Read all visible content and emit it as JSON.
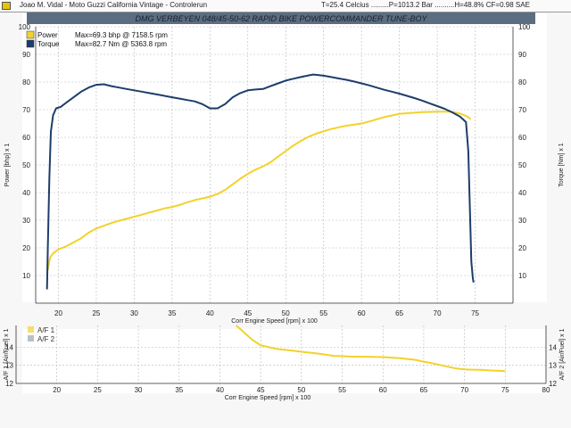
{
  "window": {
    "title": "Joao M. Vidal - Moto Guzzi California Vintage - Controlerun",
    "conditions": "T=25.4 Celcius .........P=1013.2 Bar ..........H=48.8% CF=0.98 SAE"
  },
  "banner": "DMG VERBEYEN     048/45-50-62   RAPID BIKE   POWERCOMMANDER   TUNE-BOY",
  "colors": {
    "power": "#f2d22c",
    "torque": "#1e3d6b",
    "af2": "#9aa7b3",
    "grid": "#b8b8b8",
    "banner_bg": "#5b6d80"
  },
  "chart_data": [
    {
      "type": "line",
      "title": "",
      "xlabel": "Corr Engine Speed [rpm] x 100",
      "ylabel": "Power [bhp] x 1",
      "y2label": "Torque [Nm] x 1",
      "xlim": [
        17,
        80
      ],
      "ylim": [
        0,
        100
      ],
      "y2lim": [
        0,
        100
      ],
      "xticks": [
        20,
        25,
        30,
        35,
        40,
        45,
        50,
        55,
        60,
        65,
        70,
        75
      ],
      "yticks": [
        10,
        20,
        30,
        40,
        50,
        60,
        70,
        80,
        90,
        100
      ],
      "grid": true,
      "legend_position": "top-left",
      "series": [
        {
          "name": "Power Max=69.3 bhp @ 7158.5 rpm",
          "legend_label": "Power",
          "legend_value": "Max=69.3 bhp @ 7158.5 rpm",
          "color_key": "power",
          "x": [
            18.6,
            18.9,
            19.3,
            20.0,
            21.0,
            22.0,
            23.0,
            24.0,
            25.0,
            26.0,
            27.0,
            28.0,
            29.0,
            30.0,
            31.0,
            32.0,
            33.0,
            34.0,
            35.0,
            36.0,
            37.0,
            38.0,
            39.0,
            40.0,
            41.0,
            42.0,
            43.0,
            44.0,
            45.0,
            46.0,
            47.0,
            48.0,
            49.0,
            50.0,
            51.0,
            52.0,
            53.0,
            54.0,
            55.0,
            56.0,
            57.0,
            58.0,
            59.0,
            60.0,
            61.0,
            62.0,
            63.0,
            64.0,
            65.0,
            66.0,
            67.0,
            68.0,
            69.0,
            70.0,
            71.0,
            71.6,
            72.0,
            73.0,
            74.0,
            74.4
          ],
          "y": [
            12.0,
            16.5,
            18.0,
            19.5,
            20.5,
            22.0,
            23.5,
            25.5,
            27.0,
            28.0,
            29.0,
            29.8,
            30.5,
            31.3,
            32.0,
            32.8,
            33.5,
            34.3,
            34.8,
            35.5,
            36.5,
            37.3,
            37.9,
            38.5,
            39.5,
            41.0,
            43.0,
            45.0,
            46.8,
            48.3,
            49.5,
            51.0,
            53.0,
            55.0,
            57.0,
            58.7,
            60.2,
            61.3,
            62.2,
            63.0,
            63.6,
            64.2,
            64.6,
            65.0,
            65.7,
            66.5,
            67.3,
            67.9,
            68.5,
            68.7,
            68.9,
            69.1,
            69.2,
            69.3,
            69.3,
            69.3,
            69.2,
            68.6,
            67.5,
            66.5
          ]
        },
        {
          "name": "Torque Max=82.7 Nm @ 5363.8 rpm",
          "legend_label": "Torque",
          "legend_value": "Max=82.7 Nm @ 5363.8 rpm",
          "color_key": "torque",
          "x": [
            18.5,
            18.6,
            18.8,
            19.0,
            19.3,
            19.7,
            20.3,
            21.0,
            22.0,
            23.0,
            24.0,
            25.0,
            26.0,
            27.0,
            28.0,
            29.0,
            30.0,
            31.0,
            32.0,
            33.0,
            34.0,
            35.0,
            36.0,
            37.0,
            38.0,
            39.0,
            40.0,
            41.0,
            42.0,
            43.0,
            44.0,
            45.0,
            46.0,
            47.0,
            48.0,
            49.0,
            50.0,
            51.0,
            52.0,
            53.0,
            53.6,
            54.0,
            55.0,
            56.0,
            57.0,
            58.0,
            59.0,
            60.0,
            61.0,
            62.0,
            63.0,
            64.0,
            65.0,
            66.0,
            67.0,
            68.0,
            69.0,
            70.0,
            71.0,
            72.0,
            73.0,
            73.8,
            74.1,
            74.3,
            74.5,
            74.7,
            74.8
          ],
          "y": [
            5.0,
            20.0,
            45.0,
            62.0,
            68.0,
            70.5,
            71.0,
            72.5,
            74.5,
            76.5,
            78.0,
            79.0,
            79.2,
            78.5,
            78.0,
            77.5,
            77.0,
            76.5,
            76.0,
            75.5,
            75.0,
            74.5,
            74.0,
            73.5,
            73.0,
            72.0,
            70.5,
            70.5,
            72.0,
            74.5,
            76.0,
            77.0,
            77.3,
            77.5,
            78.5,
            79.5,
            80.5,
            81.2,
            81.8,
            82.4,
            82.7,
            82.6,
            82.3,
            81.8,
            81.3,
            80.8,
            80.2,
            79.5,
            78.8,
            78.0,
            77.2,
            76.5,
            75.8,
            75.0,
            74.2,
            73.3,
            72.3,
            71.3,
            70.3,
            69.0,
            67.5,
            65.5,
            55.0,
            35.0,
            15.0,
            9.0,
            7.5
          ]
        }
      ]
    },
    {
      "type": "line",
      "title": "",
      "xlabel": "Corr Engine Speed [rpm] x 100",
      "ylabel": "A/F 1 [Air/Fuel] x 1",
      "y2label": "A/F 2 [Air/Fuel] x 1",
      "xlim": [
        15,
        80
      ],
      "ylim": [
        12,
        15.2
      ],
      "xticks": [
        20,
        25,
        30,
        35,
        40,
        45,
        50,
        55,
        60,
        65,
        70,
        75,
        80
      ],
      "yticks": [
        12,
        13,
        14
      ],
      "grid": true,
      "legend_position": "top-left",
      "series": [
        {
          "name": "A/F 1",
          "color_key": "power",
          "x": [
            42.0,
            43.0,
            44.0,
            45.0,
            46.0,
            47.0,
            48.0,
            49.0,
            50.0,
            52.0,
            54.0,
            56.0,
            58.0,
            60.0,
            62.0,
            64.0,
            65.0,
            66.0,
            67.0,
            68.0,
            69.0,
            70.0,
            71.0,
            72.0,
            73.0,
            74.0,
            75.0
          ],
          "y": [
            15.2,
            14.8,
            14.4,
            14.1,
            14.0,
            13.9,
            13.85,
            13.8,
            13.75,
            13.65,
            13.52,
            13.48,
            13.47,
            13.45,
            13.4,
            13.3,
            13.2,
            13.12,
            13.02,
            12.92,
            12.82,
            12.78,
            12.76,
            12.75,
            12.72,
            12.7,
            12.68
          ]
        },
        {
          "name": "A/F 2",
          "color_key": "af2",
          "x": [],
          "y": []
        }
      ]
    }
  ]
}
